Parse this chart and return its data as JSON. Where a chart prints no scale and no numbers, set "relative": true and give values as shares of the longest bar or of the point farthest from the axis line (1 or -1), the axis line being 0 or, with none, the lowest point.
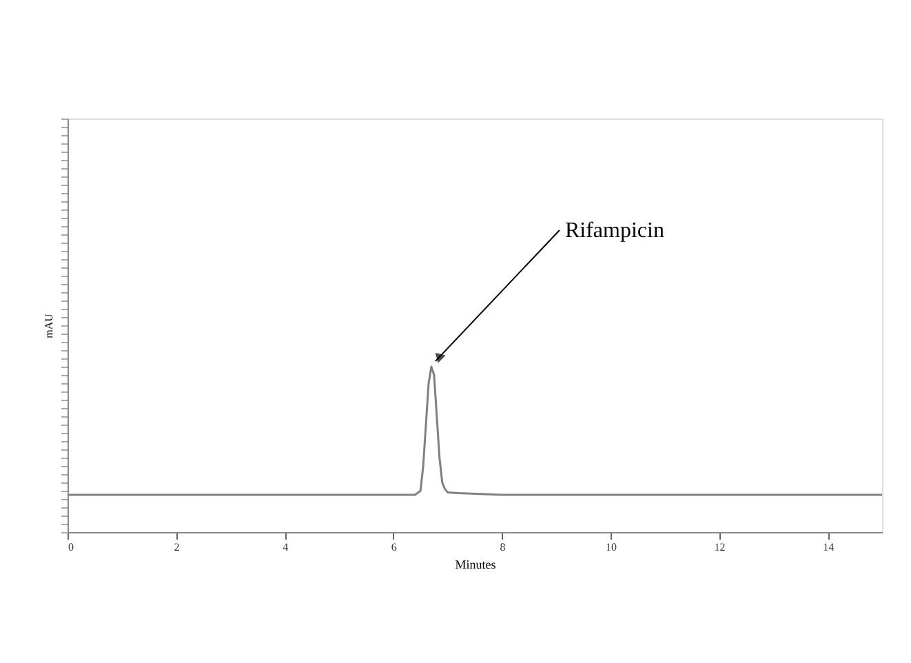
{
  "chart_data": {
    "type": "line",
    "relative": true,
    "xlabel": "Minutes",
    "ylabel": "mAU",
    "x": [
      0,
      2,
      6.4,
      6.5,
      6.55,
      6.6,
      6.65,
      6.7,
      6.75,
      6.8,
      6.85,
      6.9,
      6.95,
      7.0,
      7.2,
      7.6,
      8,
      15
    ],
    "series": [
      {
        "color": "#808080",
        "values": [
          0.225,
          0.225,
          0.225,
          0.25,
          0.4,
          0.65,
          0.9,
          1,
          0.95,
          0.7,
          0.45,
          0.3,
          0.26,
          0.24,
          0.235,
          0.23,
          0.225,
          0.225
        ]
      }
    ],
    "xlim": [
      0,
      15
    ],
    "xticks": [
      0,
      2,
      4,
      6,
      8,
      10,
      12,
      14
    ],
    "tick_labels": "x",
    "grid": false,
    "annotations": [
      {
        "text": "Rifampicin",
        "x": 6.7,
        "y": 1
      }
    ]
  }
}
